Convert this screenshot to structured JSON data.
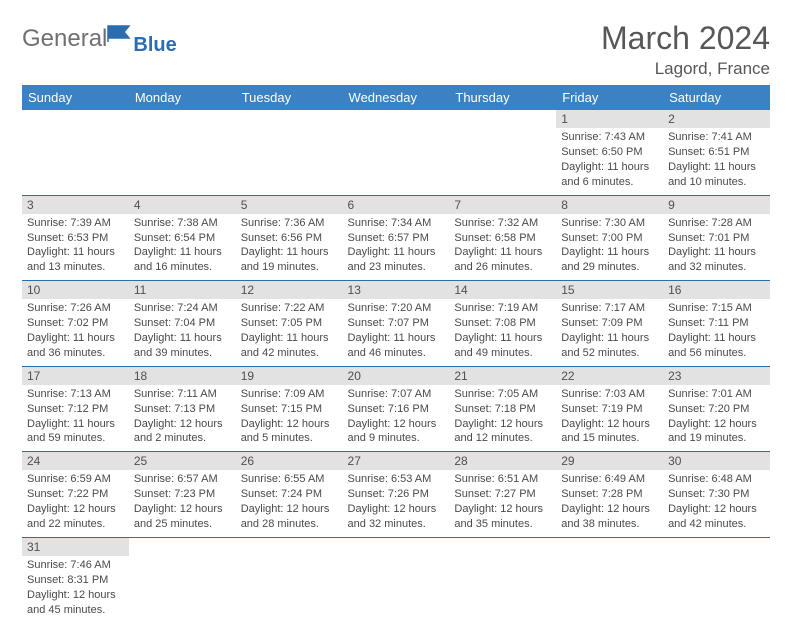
{
  "logo": {
    "text1": "General",
    "text2": "Blue"
  },
  "title": "March 2024",
  "location": "Lagord, France",
  "colors": {
    "header_bg": "#3a82c4",
    "border": "#2a6db0",
    "daynum_bg": "#e2e2e2",
    "text": "#4a4a4a"
  },
  "dayHeaders": [
    "Sunday",
    "Monday",
    "Tuesday",
    "Wednesday",
    "Thursday",
    "Friday",
    "Saturday"
  ],
  "weeks": [
    [
      null,
      null,
      null,
      null,
      null,
      {
        "n": "1",
        "sunrise": "Sunrise: 7:43 AM",
        "sunset": "Sunset: 6:50 PM",
        "daylight": "Daylight: 11 hours and 6 minutes."
      },
      {
        "n": "2",
        "sunrise": "Sunrise: 7:41 AM",
        "sunset": "Sunset: 6:51 PM",
        "daylight": "Daylight: 11 hours and 10 minutes."
      }
    ],
    [
      {
        "n": "3",
        "sunrise": "Sunrise: 7:39 AM",
        "sunset": "Sunset: 6:53 PM",
        "daylight": "Daylight: 11 hours and 13 minutes."
      },
      {
        "n": "4",
        "sunrise": "Sunrise: 7:38 AM",
        "sunset": "Sunset: 6:54 PM",
        "daylight": "Daylight: 11 hours and 16 minutes."
      },
      {
        "n": "5",
        "sunrise": "Sunrise: 7:36 AM",
        "sunset": "Sunset: 6:56 PM",
        "daylight": "Daylight: 11 hours and 19 minutes."
      },
      {
        "n": "6",
        "sunrise": "Sunrise: 7:34 AM",
        "sunset": "Sunset: 6:57 PM",
        "daylight": "Daylight: 11 hours and 23 minutes."
      },
      {
        "n": "7",
        "sunrise": "Sunrise: 7:32 AM",
        "sunset": "Sunset: 6:58 PM",
        "daylight": "Daylight: 11 hours and 26 minutes."
      },
      {
        "n": "8",
        "sunrise": "Sunrise: 7:30 AM",
        "sunset": "Sunset: 7:00 PM",
        "daylight": "Daylight: 11 hours and 29 minutes."
      },
      {
        "n": "9",
        "sunrise": "Sunrise: 7:28 AM",
        "sunset": "Sunset: 7:01 PM",
        "daylight": "Daylight: 11 hours and 32 minutes."
      }
    ],
    [
      {
        "n": "10",
        "sunrise": "Sunrise: 7:26 AM",
        "sunset": "Sunset: 7:02 PM",
        "daylight": "Daylight: 11 hours and 36 minutes."
      },
      {
        "n": "11",
        "sunrise": "Sunrise: 7:24 AM",
        "sunset": "Sunset: 7:04 PM",
        "daylight": "Daylight: 11 hours and 39 minutes."
      },
      {
        "n": "12",
        "sunrise": "Sunrise: 7:22 AM",
        "sunset": "Sunset: 7:05 PM",
        "daylight": "Daylight: 11 hours and 42 minutes."
      },
      {
        "n": "13",
        "sunrise": "Sunrise: 7:20 AM",
        "sunset": "Sunset: 7:07 PM",
        "daylight": "Daylight: 11 hours and 46 minutes."
      },
      {
        "n": "14",
        "sunrise": "Sunrise: 7:19 AM",
        "sunset": "Sunset: 7:08 PM",
        "daylight": "Daylight: 11 hours and 49 minutes."
      },
      {
        "n": "15",
        "sunrise": "Sunrise: 7:17 AM",
        "sunset": "Sunset: 7:09 PM",
        "daylight": "Daylight: 11 hours and 52 minutes."
      },
      {
        "n": "16",
        "sunrise": "Sunrise: 7:15 AM",
        "sunset": "Sunset: 7:11 PM",
        "daylight": "Daylight: 11 hours and 56 minutes."
      }
    ],
    [
      {
        "n": "17",
        "sunrise": "Sunrise: 7:13 AM",
        "sunset": "Sunset: 7:12 PM",
        "daylight": "Daylight: 11 hours and 59 minutes."
      },
      {
        "n": "18",
        "sunrise": "Sunrise: 7:11 AM",
        "sunset": "Sunset: 7:13 PM",
        "daylight": "Daylight: 12 hours and 2 minutes."
      },
      {
        "n": "19",
        "sunrise": "Sunrise: 7:09 AM",
        "sunset": "Sunset: 7:15 PM",
        "daylight": "Daylight: 12 hours and 5 minutes."
      },
      {
        "n": "20",
        "sunrise": "Sunrise: 7:07 AM",
        "sunset": "Sunset: 7:16 PM",
        "daylight": "Daylight: 12 hours and 9 minutes."
      },
      {
        "n": "21",
        "sunrise": "Sunrise: 7:05 AM",
        "sunset": "Sunset: 7:18 PM",
        "daylight": "Daylight: 12 hours and 12 minutes."
      },
      {
        "n": "22",
        "sunrise": "Sunrise: 7:03 AM",
        "sunset": "Sunset: 7:19 PM",
        "daylight": "Daylight: 12 hours and 15 minutes."
      },
      {
        "n": "23",
        "sunrise": "Sunrise: 7:01 AM",
        "sunset": "Sunset: 7:20 PM",
        "daylight": "Daylight: 12 hours and 19 minutes."
      }
    ],
    [
      {
        "n": "24",
        "sunrise": "Sunrise: 6:59 AM",
        "sunset": "Sunset: 7:22 PM",
        "daylight": "Daylight: 12 hours and 22 minutes."
      },
      {
        "n": "25",
        "sunrise": "Sunrise: 6:57 AM",
        "sunset": "Sunset: 7:23 PM",
        "daylight": "Daylight: 12 hours and 25 minutes."
      },
      {
        "n": "26",
        "sunrise": "Sunrise: 6:55 AM",
        "sunset": "Sunset: 7:24 PM",
        "daylight": "Daylight: 12 hours and 28 minutes."
      },
      {
        "n": "27",
        "sunrise": "Sunrise: 6:53 AM",
        "sunset": "Sunset: 7:26 PM",
        "daylight": "Daylight: 12 hours and 32 minutes."
      },
      {
        "n": "28",
        "sunrise": "Sunrise: 6:51 AM",
        "sunset": "Sunset: 7:27 PM",
        "daylight": "Daylight: 12 hours and 35 minutes."
      },
      {
        "n": "29",
        "sunrise": "Sunrise: 6:49 AM",
        "sunset": "Sunset: 7:28 PM",
        "daylight": "Daylight: 12 hours and 38 minutes."
      },
      {
        "n": "30",
        "sunrise": "Sunrise: 6:48 AM",
        "sunset": "Sunset: 7:30 PM",
        "daylight": "Daylight: 12 hours and 42 minutes."
      }
    ],
    [
      {
        "n": "31",
        "sunrise": "Sunrise: 7:46 AM",
        "sunset": "Sunset: 8:31 PM",
        "daylight": "Daylight: 12 hours and 45 minutes."
      },
      null,
      null,
      null,
      null,
      null,
      null
    ]
  ]
}
